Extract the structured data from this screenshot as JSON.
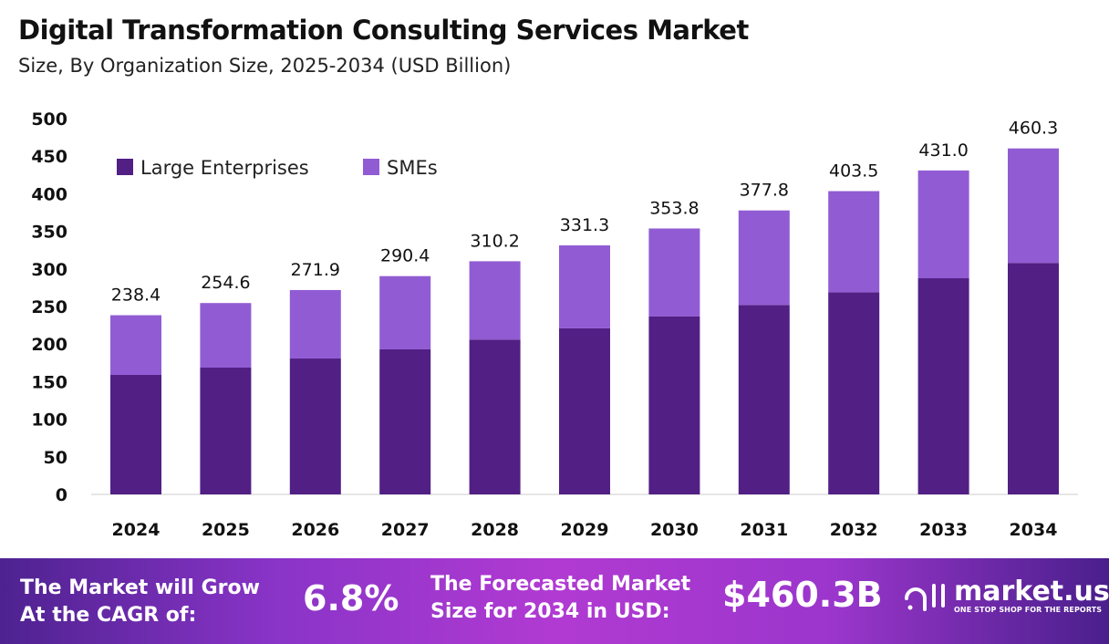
{
  "chart_data": {
    "type": "bar",
    "stacked": true,
    "title": "Digital Transformation Consulting Services Market",
    "subtitle": "Size, By Organization Size, 2025-2034 (USD Billion)",
    "xlabel": "",
    "ylabel": "",
    "ylim": [
      0,
      500
    ],
    "yticks": [
      0,
      50,
      100,
      150,
      200,
      250,
      300,
      350,
      400,
      450,
      500
    ],
    "categories": [
      "2024",
      "2025",
      "2026",
      "2027",
      "2028",
      "2029",
      "2030",
      "2031",
      "2032",
      "2033",
      "2034"
    ],
    "series": [
      {
        "name": "Large Enterprises",
        "color": "#521f85",
        "values": [
          159.0,
          168.7,
          180.8,
          193.0,
          206.0,
          221.0,
          236.7,
          252.0,
          269.0,
          287.6,
          308.0
        ]
      },
      {
        "name": "SMEs",
        "color": "#915cd3",
        "values": [
          79.4,
          85.9,
          91.1,
          97.4,
          104.2,
          110.3,
          117.1,
          125.8,
          134.5,
          143.4,
          152.3
        ]
      }
    ],
    "totals": [
      "238.4",
      "254.6",
      "271.9",
      "290.4",
      "310.2",
      "331.3",
      "353.8",
      "377.8",
      "403.5",
      "431.0",
      "460.3"
    ],
    "legend_position": "top-left",
    "grid": false
  },
  "footer": {
    "cagr_label_1": "The Market will Grow",
    "cagr_label_2": "At the CAGR of:",
    "cagr_value": "6.8%",
    "forecast_label_1": "The Forecasted Market",
    "forecast_label_2": "Size for 2034 in USD:",
    "forecast_value": "$460.3B",
    "logo_text": "market.us",
    "logo_tagline": "ONE STOP SHOP FOR THE REPORTS"
  }
}
